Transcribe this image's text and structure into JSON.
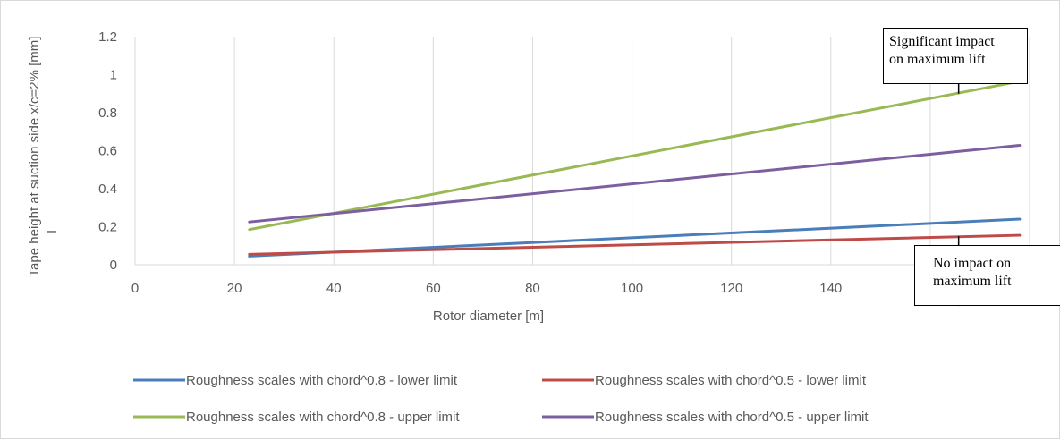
{
  "chart_data": {
    "type": "line",
    "xlabel": "Rotor diameter [m]",
    "ylabel": "Tape height at suction side x/c=2%  [mm]",
    "ylabel_extra": "l",
    "xlim": [
      0,
      180
    ],
    "ylim": [
      0,
      1.2
    ],
    "x_ticks": [
      0,
      20,
      40,
      60,
      80,
      100,
      120,
      140,
      160
    ],
    "x_tick_labels": [
      "0",
      "20",
      "40",
      "60",
      "80",
      "100",
      "120",
      "140",
      "160"
    ],
    "y_ticks": [
      0,
      0.2,
      0.4,
      0.6,
      0.8,
      1,
      1.2
    ],
    "y_tick_labels": [
      "0",
      "0.2",
      "0.4",
      "0.6",
      "0.8",
      "1",
      "1.2"
    ],
    "grid": "vertical",
    "legend_position": "bottom",
    "series": [
      {
        "name": "Roughness scales with chord^0.8 - lower limit",
        "color": "#4a7ebb",
        "x": [
          23,
          178
        ],
        "y": [
          0.045,
          0.24
        ]
      },
      {
        "name": "Roughness scales with chord^0.5 - lower limit",
        "color": "#be4b48",
        "x": [
          23,
          178
        ],
        "y": [
          0.055,
          0.155
        ]
      },
      {
        "name": "Roughness scales with chord^0.8 - upper limit",
        "color": "#98b954",
        "x": [
          23,
          178
        ],
        "y": [
          0.185,
          0.965
        ]
      },
      {
        "name": "Roughness scales with chord^0.5 - upper limit",
        "color": "#7d5fa0",
        "x": [
          23,
          178
        ],
        "y": [
          0.225,
          0.628
        ]
      }
    ],
    "annotations": [
      {
        "text": "Significant impact\non maximum lift",
        "arrow_direction": "up",
        "arrow_x": 165,
        "arrow_from_y": 0.9,
        "arrow_to_y": 1.2
      },
      {
        "text": "No impact on\nmaximum lift",
        "arrow_direction": "down",
        "arrow_x": 165,
        "arrow_from_y": 0.15,
        "arrow_to_y": -0.2
      }
    ]
  }
}
